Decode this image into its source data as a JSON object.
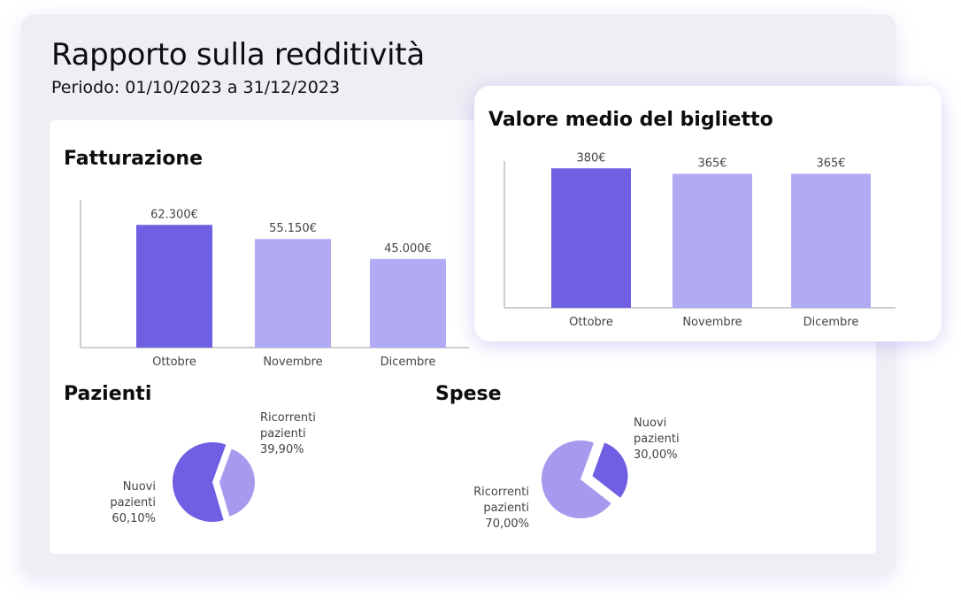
{
  "report": {
    "title": "Rapporto sulla redditività",
    "period": "Periodo: 01/10/2023 a 31/12/2023"
  },
  "colors": {
    "primary": "#6F5FE2",
    "light": "#B1ABF5",
    "pie_dark": "#6F5FE2",
    "pie_light": "#A59AEE",
    "axis": "#bdbdbd"
  },
  "chart_data": [
    {
      "id": "fatturazione",
      "type": "bar",
      "title": "Fatturazione",
      "categories": [
        "Ottobre",
        "Novembre",
        "Dicembre"
      ],
      "values": [
        62300,
        55150,
        45000
      ],
      "value_labels": [
        "62.300€",
        "55.150€",
        "45.000€"
      ],
      "highlight_index": 0,
      "ylim": [
        0,
        75000
      ],
      "grid": false
    },
    {
      "id": "valore_medio",
      "type": "bar",
      "title": "Valore medio del biglietto",
      "categories": [
        "Ottobre",
        "Novembre",
        "Dicembre"
      ],
      "values": [
        380,
        365,
        365
      ],
      "value_labels": [
        "380€",
        "365€",
        "365€"
      ],
      "highlight_index": 0,
      "ylim": [
        0,
        400
      ],
      "grid": false
    },
    {
      "id": "pazienti",
      "type": "pie",
      "title": "Pazienti",
      "slices": [
        {
          "label_lines": [
            "Ricorrenti",
            "pazienti",
            "39,90%"
          ],
          "value": 39.9
        },
        {
          "label_lines": [
            "Nuovi",
            "pazienti",
            "60,10%"
          ],
          "value": 60.1
        }
      ]
    },
    {
      "id": "spese",
      "type": "pie",
      "title": "Spese",
      "slices": [
        {
          "label_lines": [
            "Nuovi",
            "pazienti",
            "30,00%"
          ],
          "value": 30.0
        },
        {
          "label_lines": [
            "Ricorrenti",
            "pazienti",
            "70,00%"
          ],
          "value": 70.0
        }
      ]
    }
  ]
}
